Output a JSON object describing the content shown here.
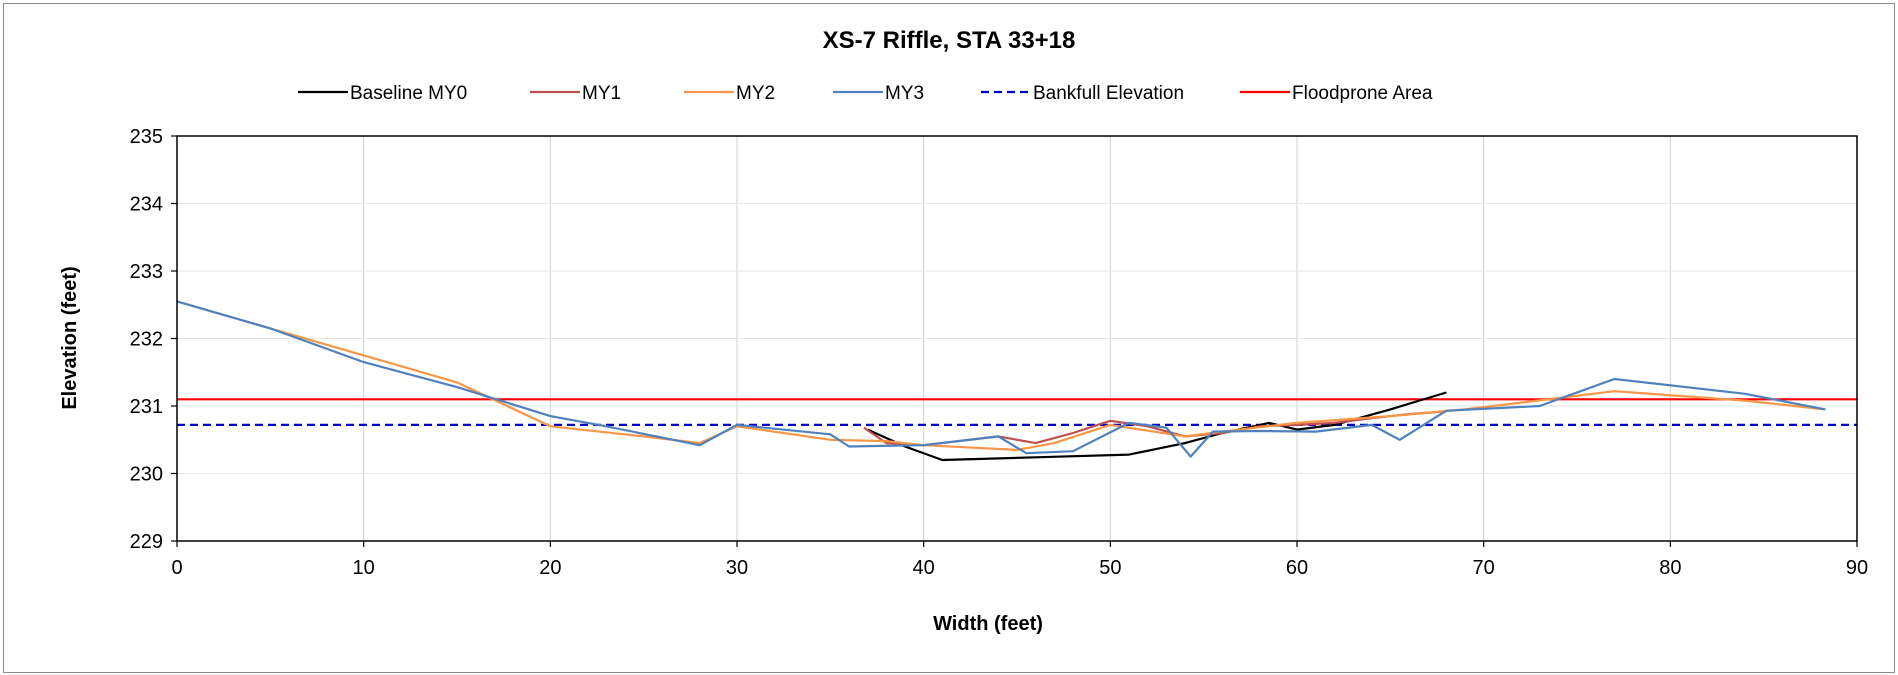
{
  "chart_data": {
    "type": "line",
    "title": "XS-7 Riffle, STA 33+18",
    "xlabel": "Width (feet)",
    "ylabel": "Elevation (feet)",
    "xlim": [
      0,
      90
    ],
    "ylim": [
      229,
      235
    ],
    "x_ticks": [
      "0",
      "10",
      "20",
      "30",
      "40",
      "50",
      "60",
      "70",
      "80",
      "90"
    ],
    "y_ticks": [
      "229",
      "230",
      "231",
      "232",
      "233",
      "234",
      "235"
    ],
    "grid": "vertical",
    "legend_position": "top",
    "series": [
      {
        "name": "Baseline MY0",
        "color": "#000000",
        "dash": "solid",
        "points": [
          [
            37.0,
            230.65
          ],
          [
            39.0,
            230.4
          ],
          [
            41.0,
            230.2
          ],
          [
            46.0,
            230.24
          ],
          [
            51.0,
            230.28
          ],
          [
            54.0,
            230.45
          ],
          [
            56.0,
            230.6
          ],
          [
            58.5,
            230.75
          ],
          [
            60.0,
            230.65
          ],
          [
            62.0,
            230.72
          ],
          [
            65.0,
            230.95
          ],
          [
            68.0,
            231.2
          ]
        ]
      },
      {
        "name": "MY1",
        "color": "#c0504d",
        "dash": "solid",
        "points": [
          [
            36.8,
            230.68
          ],
          [
            38.0,
            230.45
          ],
          [
            40.0,
            230.42
          ],
          [
            44.0,
            230.55
          ],
          [
            46.0,
            230.45
          ],
          [
            48.0,
            230.6
          ],
          [
            50.0,
            230.78
          ],
          [
            52.0,
            230.7
          ],
          [
            54.0,
            230.55
          ],
          [
            56.0,
            230.6
          ],
          [
            58.0,
            230.7
          ],
          [
            60.0,
            230.72
          ],
          [
            62.0,
            230.75
          ],
          [
            64.0,
            230.82
          ],
          [
            66.0,
            230.88
          ],
          [
            68.0,
            230.92
          ]
        ]
      },
      {
        "name": "MY2",
        "color": "#f79646",
        "dash": "solid",
        "points": [
          [
            0,
            232.55
          ],
          [
            5,
            232.15
          ],
          [
            10,
            231.75
          ],
          [
            15,
            231.35
          ],
          [
            20,
            230.7
          ],
          [
            25,
            230.55
          ],
          [
            28,
            230.45
          ],
          [
            30,
            230.7
          ],
          [
            35,
            230.5
          ],
          [
            38,
            230.48
          ],
          [
            40,
            230.42
          ],
          [
            45,
            230.35
          ],
          [
            47,
            230.45
          ],
          [
            50,
            230.72
          ],
          [
            54,
            230.55
          ],
          [
            56,
            230.62
          ],
          [
            60,
            230.75
          ],
          [
            65,
            230.85
          ],
          [
            69,
            230.95
          ],
          [
            72,
            231.05
          ],
          [
            77,
            231.22
          ],
          [
            84,
            231.08
          ],
          [
            88.3,
            230.95
          ]
        ]
      },
      {
        "name": "MY3",
        "color": "#4f81bd",
        "dash": "solid",
        "points": [
          [
            0,
            232.55
          ],
          [
            5,
            232.15
          ],
          [
            10,
            231.65
          ],
          [
            15,
            231.28
          ],
          [
            20,
            230.85
          ],
          [
            23,
            230.7
          ],
          [
            28,
            230.42
          ],
          [
            30,
            230.72
          ],
          [
            35,
            230.58
          ],
          [
            36,
            230.4
          ],
          [
            40,
            230.42
          ],
          [
            44,
            230.55
          ],
          [
            45.5,
            230.3
          ],
          [
            48,
            230.33
          ],
          [
            51,
            230.75
          ],
          [
            53,
            230.68
          ],
          [
            54.3,
            230.25
          ],
          [
            55.5,
            230.62
          ],
          [
            58,
            230.63
          ],
          [
            61,
            230.62
          ],
          [
            64,
            230.72
          ],
          [
            65.5,
            230.5
          ],
          [
            68,
            230.93
          ],
          [
            73,
            231.0
          ],
          [
            77,
            231.4
          ],
          [
            84,
            231.18
          ],
          [
            88.3,
            230.95
          ]
        ]
      },
      {
        "name": "Bankfull Elevation",
        "color": "#0000cc",
        "dash": "dashed",
        "points": [
          [
            0,
            230.72
          ],
          [
            90,
            230.72
          ]
        ]
      },
      {
        "name": "Floodprone Area",
        "color": "#ff0000",
        "dash": "solid",
        "points": [
          [
            0,
            231.1
          ],
          [
            90,
            231.1
          ]
        ]
      }
    ]
  }
}
